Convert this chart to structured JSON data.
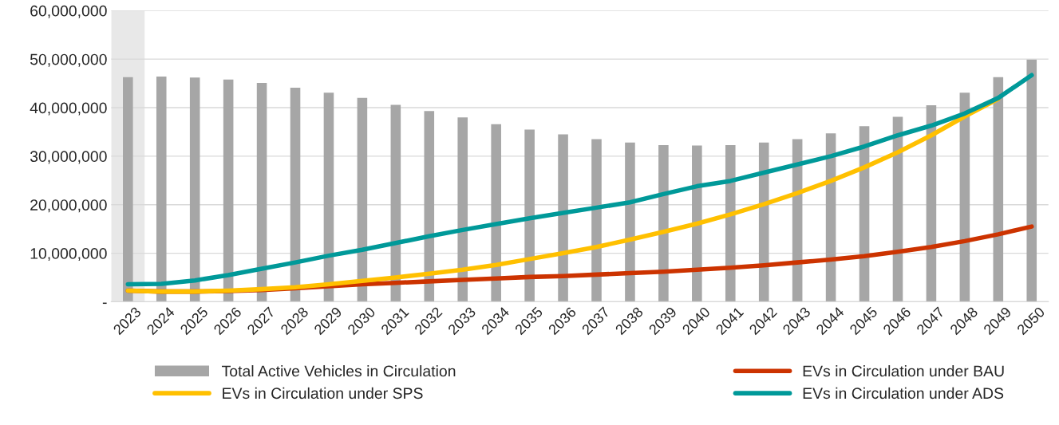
{
  "chart_data": {
    "type": "bar",
    "categories": [
      "2023",
      "2024",
      "2025",
      "2026",
      "2027",
      "2028",
      "2029",
      "2030",
      "2031",
      "2032",
      "2033",
      "2034",
      "2035",
      "2036",
      "2037",
      "2038",
      "2039",
      "2040",
      "2041",
      "2042",
      "2043",
      "2044",
      "2045",
      "2046",
      "2047",
      "2048",
      "2049",
      "2050"
    ],
    "series": [
      {
        "name": "Total Active Vehicles in Circulation",
        "color": "#a6a6a6",
        "values": [
          46300000,
          46400000,
          46200000,
          45800000,
          45100000,
          44100000,
          43100000,
          42000000,
          40600000,
          39300000,
          38000000,
          36600000,
          35500000,
          34500000,
          33500000,
          32800000,
          32300000,
          32200000,
          32300000,
          32800000,
          33500000,
          34700000,
          36200000,
          38100000,
          40500000,
          43100000,
          46300000,
          49900000
        ]
      },
      {
        "name": "EVs in Circulation under BAU",
        "type": "line",
        "color": "#cc3300",
        "values": [
          2300000,
          2100000,
          2100000,
          2200000,
          2400000,
          2800000,
          3200000,
          3600000,
          3900000,
          4200000,
          4500000,
          4800000,
          5100000,
          5300000,
          5600000,
          5900000,
          6200000,
          6600000,
          7000000,
          7500000,
          8100000,
          8700000,
          9400000,
          10300000,
          11300000,
          12500000,
          13900000,
          15500000
        ]
      },
      {
        "name": "EVs in Circulation under SPS",
        "type": "line",
        "color": "#ffc000",
        "values": [
          2300000,
          2100000,
          2100000,
          2300000,
          2600000,
          3000000,
          3600000,
          4300000,
          5000000,
          5800000,
          6600000,
          7600000,
          8800000,
          10000000,
          11300000,
          12800000,
          14400000,
          16100000,
          18000000,
          20100000,
          22400000,
          24900000,
          27700000,
          30800000,
          34300000,
          38200000,
          41800000,
          null
        ]
      },
      {
        "name": "EVs in Circulation under ADS",
        "type": "line",
        "color": "#009999",
        "values": [
          3600000,
          3700000,
          4400000,
          5500000,
          6800000,
          8100000,
          9500000,
          10700000,
          12100000,
          13500000,
          14800000,
          16000000,
          17200000,
          18300000,
          19400000,
          20500000,
          22200000,
          23800000,
          24900000,
          26600000,
          28300000,
          30000000,
          32000000,
          34300000,
          36300000,
          38800000,
          42000000,
          46700000
        ]
      }
    ],
    "ylim": [
      0,
      60000000
    ],
    "yticks": [
      {
        "value": 0,
        "label": "-"
      },
      {
        "value": 10000000,
        "label": "10,000,000"
      },
      {
        "value": 20000000,
        "label": "20,000,000"
      },
      {
        "value": 30000000,
        "label": "30,000,000"
      },
      {
        "value": 40000000,
        "label": "40,000,000"
      },
      {
        "value": 50000000,
        "label": "50,000,000"
      },
      {
        "value": 60000000,
        "label": "60,000,000"
      }
    ],
    "bands": [
      {
        "axis": "x",
        "from": "2023",
        "to": "2023",
        "color": "#e8e8e8"
      }
    ],
    "grid": "y",
    "legend": "bottom",
    "line_style": "solid",
    "marker": "none"
  }
}
